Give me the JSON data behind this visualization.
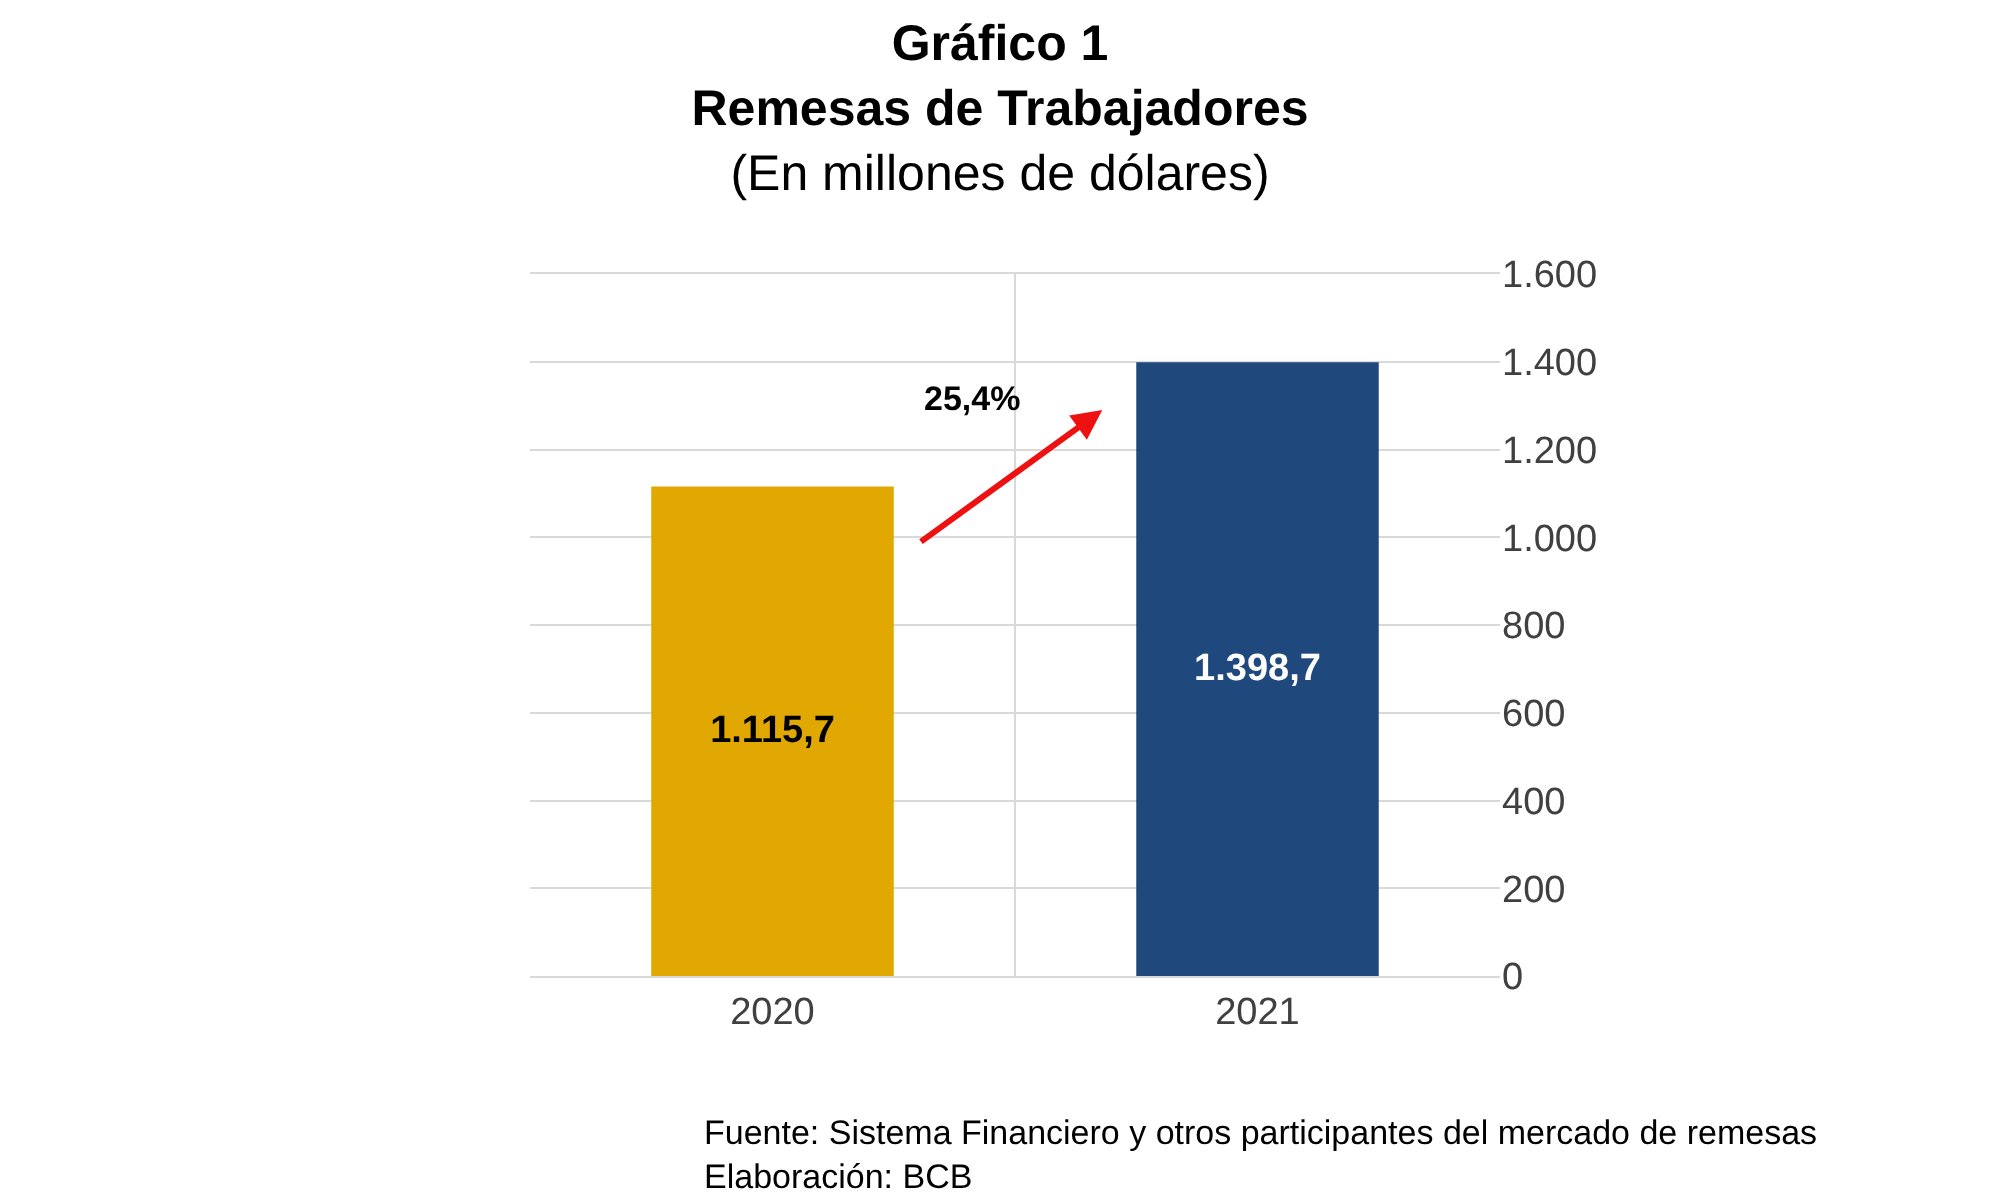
{
  "chart_data": {
    "type": "bar",
    "title": "Gráfico 1\nRemesas de Trabajadores",
    "subtitle": "(En millones de dólares)",
    "categories": [
      "2020",
      "2021"
    ],
    "values": [
      1115.7,
      1398.7
    ],
    "colors": [
      "#e0a800",
      "#1f497d"
    ],
    "value_labels": [
      "1.115,7",
      "1.398,7"
    ],
    "ylim": [
      0,
      1600
    ],
    "yticks": [
      0,
      200,
      400,
      600,
      800,
      {
        "value": 1000,
        "label": "1.000"
      },
      {
        "value": 1200,
        "label": "1.200"
      },
      {
        "value": 1400,
        "label": "1.400"
      },
      {
        "value": 1600,
        "label": "1.600"
      }
    ],
    "grid": true,
    "annotations": [
      "25,4%",
      "Fuente: Sistema Financiero y otros participantes del mercado de remesas",
      "Elaboración: BCB"
    ]
  }
}
